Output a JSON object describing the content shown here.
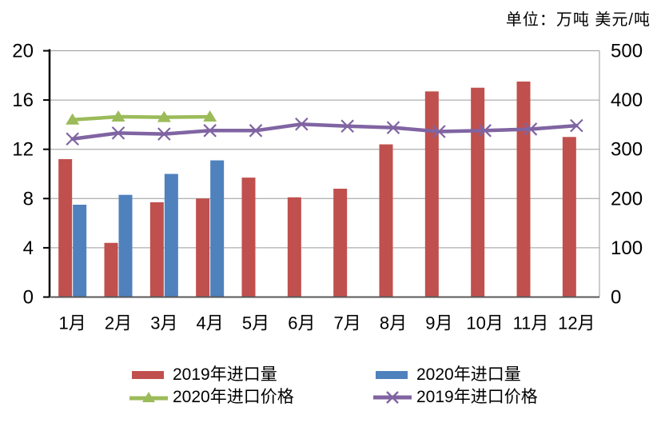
{
  "chart_data": {
    "type": "combo-bar-line",
    "unit_label": "单位：万吨 美元/吨",
    "categories": [
      "1月",
      "2月",
      "3月",
      "4月",
      "5月",
      "6月",
      "7月",
      "8月",
      "9月",
      "10月",
      "11月",
      "12月"
    ],
    "series": [
      {
        "name": "2019年进口量",
        "type": "bar",
        "axis": "left",
        "color": "#C0504D",
        "values": [
          11.2,
          4.4,
          7.7,
          8.0,
          9.7,
          8.1,
          8.8,
          12.4,
          16.7,
          17.0,
          17.5,
          13.0
        ]
      },
      {
        "name": "2020年进口量",
        "type": "bar",
        "axis": "left",
        "color": "#4F81BD",
        "values": [
          7.5,
          8.3,
          10.0,
          11.1,
          null,
          null,
          null,
          null,
          null,
          null,
          null,
          null
        ]
      },
      {
        "name": "2020年进口价格",
        "type": "line",
        "marker": "triangle",
        "axis": "right",
        "color": "#9BBB59",
        "values": [
          360,
          366,
          365,
          366,
          null,
          null,
          null,
          null,
          null,
          null,
          null,
          null
        ]
      },
      {
        "name": "2019年进口价格",
        "type": "line",
        "marker": "x",
        "axis": "right",
        "color": "#8064A2",
        "values": [
          321,
          333,
          331,
          338,
          338,
          351,
          347,
          344,
          336,
          338,
          341,
          348
        ]
      }
    ],
    "left_axis": {
      "min": 0,
      "max": 20,
      "ticks": [
        0,
        4,
        8,
        12,
        16,
        20
      ]
    },
    "right_axis": {
      "min": 0,
      "max": 500,
      "ticks": [
        0,
        100,
        200,
        300,
        400,
        500
      ]
    },
    "grid": "horizontal",
    "legend_position": "bottom",
    "grid_color": "#9a9a9a",
    "axis_color": "#000000",
    "bottom_axis_color": "#595959",
    "text_color": "#000000"
  }
}
